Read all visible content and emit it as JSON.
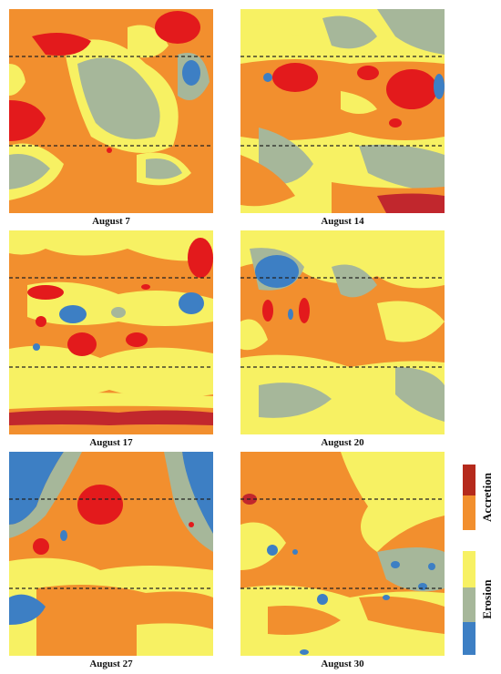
{
  "colors": {
    "strong_accretion": "#c1272d",
    "accretion_red": "#e31a1c",
    "accretion": "#f28f2e",
    "neutral": "#f7f163",
    "erosion": "#a6b79a",
    "strong_erosion": "#3d7fc4",
    "profile_line": "#222222"
  },
  "panels": [
    {
      "id": "aug7",
      "caption": "August 7"
    },
    {
      "id": "aug14",
      "caption": "August 14"
    },
    {
      "id": "aug17",
      "caption": "August 17"
    },
    {
      "id": "aug20",
      "caption": "August 20"
    },
    {
      "id": "aug27",
      "caption": "August 27"
    },
    {
      "id": "aug30",
      "caption": "August 30"
    }
  ],
  "legend": {
    "accretion_label": "Accretion",
    "erosion_label": "Erosion",
    "accretion_colors": [
      "#b52a1c",
      "#f28f2e"
    ],
    "erosion_colors": [
      "#f7f163",
      "#a6b79a",
      "#3d7fc4"
    ]
  }
}
